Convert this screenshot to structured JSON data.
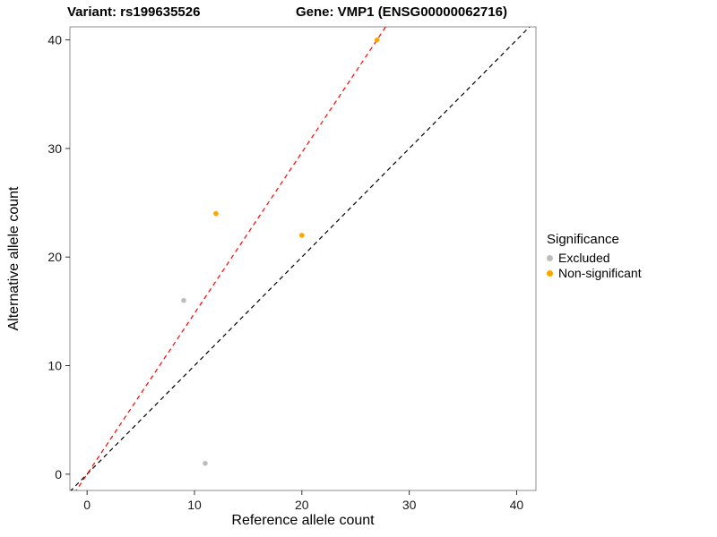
{
  "header": {
    "variant_title": "Variant: rs199635526",
    "gene_title": "Gene: VMP1 (ENSG00000062716)"
  },
  "axes": {
    "xlabel": "Reference allele count",
    "ylabel": "Alternative allele count"
  },
  "legend": {
    "title": "Significance",
    "position": "right",
    "items": [
      {
        "label": "Excluded",
        "color": "#BDBDBD"
      },
      {
        "label": "Non-significant",
        "color": "#FFA500"
      }
    ]
  },
  "chart_data": {
    "type": "scatter",
    "title": "",
    "xlabel": "Reference allele count",
    "ylabel": "Alternative allele count",
    "xlim": [
      -1.6,
      41.8
    ],
    "ylim": [
      -1.5,
      41.2
    ],
    "xticks": [
      0,
      10,
      20,
      30,
      40
    ],
    "yticks": [
      0,
      10,
      20,
      30,
      40
    ],
    "grid": false,
    "series": [
      {
        "name": "Excluded",
        "color": "#BDBDBD",
        "points": [
          [
            9,
            16
          ],
          [
            11,
            1
          ]
        ]
      },
      {
        "name": "Non-significant",
        "color": "#FFA500",
        "points": [
          [
            12,
            24
          ],
          [
            20,
            22
          ],
          [
            27,
            40
          ]
        ]
      }
    ],
    "lines": [
      {
        "name": "identity",
        "color": "#000000",
        "dash": "5,4",
        "slope": 1.0,
        "intercept": 0
      },
      {
        "name": "fitted",
        "color": "#FF0000",
        "dash": "5,4",
        "slope": 1.4815,
        "intercept": 0
      }
    ]
  }
}
